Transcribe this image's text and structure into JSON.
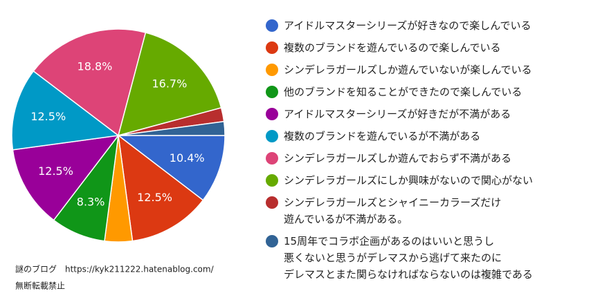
{
  "chart_data": {
    "type": "pie",
    "series": [
      {
        "name": "アイドルマスターシリーズが好きなので楽しんでいる",
        "color": "#3366cc"
      },
      {
        "name": "複数のブランドを遊んでいるので楽しんでいる",
        "color": "#dc3912"
      },
      {
        "name": "シンデレラガールズしか遊んでいないが楽しんでいる",
        "color": "#ff9900"
      },
      {
        "name": "他のブランドを知ることができたので楽しんでいる",
        "color": "#109618"
      },
      {
        "name": "アイドルマスターシリーズが好きだが不満がある",
        "color": "#990099"
      },
      {
        "name": "複数のブランドを遊んでいるが不満がある",
        "color": "#0099c6"
      },
      {
        "name": "シンデレラガールズしか遊んでおらず不満がある",
        "color": "#dd4477"
      },
      {
        "name": "シンデレラガールズにしか興味がないので関心がない",
        "color": "#66aa00"
      },
      {
        "name": "シンデレラガールズとシャイニーカラーズだけ\n遊んでいるが不満がある。",
        "color": "#b82e2e"
      },
      {
        "name": "15周年でコラボ企画があるのはいいと思うし\n悪くないと思うがデレマスから逃げて来たのに\nデレマスとまた関らなければならないのは複雑である",
        "color": "#316395"
      }
    ],
    "values": [
      10.4,
      12.5,
      4.2,
      8.3,
      12.5,
      12.5,
      18.8,
      16.7,
      2.1,
      2.1
    ],
    "value_labels": [
      "10.4%",
      "12.5%",
      null,
      "8.3%",
      "12.5%",
      "12.5%",
      "18.8%",
      "16.7%",
      null,
      null
    ],
    "annotations": [
      "謎のブログ　https://kyk211222.hatenablog.com/",
      "無断転載禁止"
    ]
  }
}
